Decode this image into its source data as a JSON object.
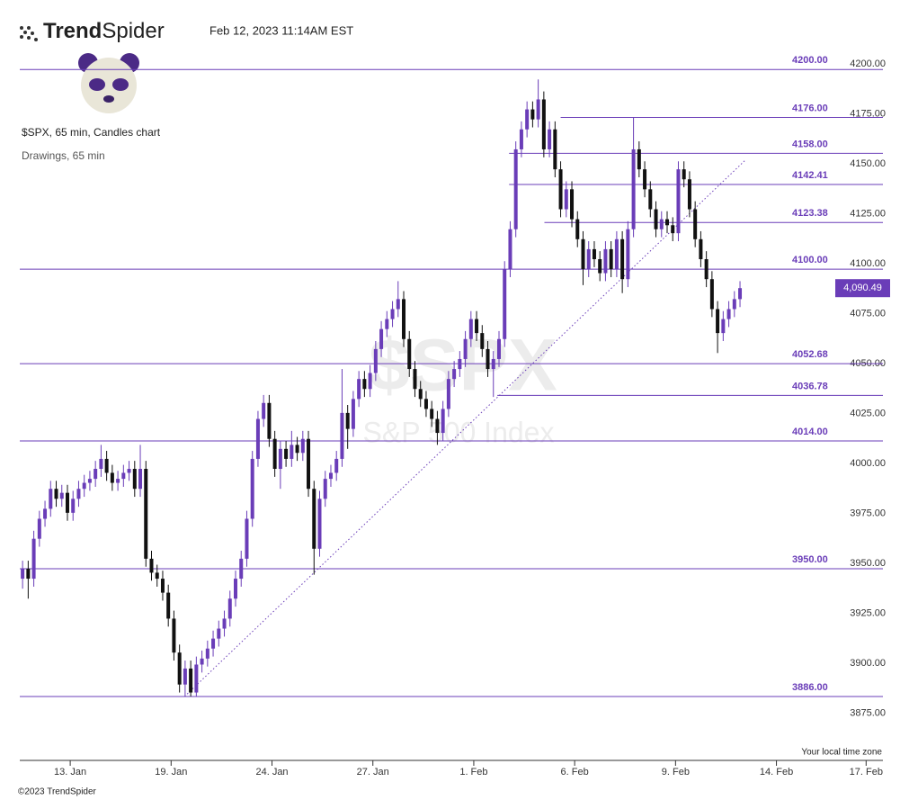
{
  "header": {
    "brand_bold": "Trend",
    "brand_light": "Spider",
    "timestamp": "Feb 12, 2023 11:14AM EST"
  },
  "footer": {
    "copyright": "©2023 TrendSpider",
    "timezone_note": "Your local time zone"
  },
  "chart_data": {
    "type": "candlestick",
    "title": "$SPX, 65 min, Candles chart",
    "subtitle": "Drawings, 65 min",
    "watermark": "$SPX",
    "watermark_subtitle": "S&P 500 Index",
    "up_color": "#6a3db8",
    "down_color": "#111111",
    "level_color": "#6a3db8",
    "grid": false,
    "xlim": [
      0,
      154
    ],
    "ylim": [
      3854,
      4210
    ],
    "xticks": [
      {
        "value": 9,
        "label": "13. Jan"
      },
      {
        "value": 27,
        "label": "19. Jan"
      },
      {
        "value": 45,
        "label": "24. Jan"
      },
      {
        "value": 63,
        "label": "27. Jan"
      },
      {
        "value": 81,
        "label": "1. Feb"
      },
      {
        "value": 99,
        "label": "6. Feb"
      },
      {
        "value": 117,
        "label": "9. Feb"
      },
      {
        "value": 135,
        "label": "14. Feb"
      },
      {
        "value": 151,
        "label": "17. Feb"
      }
    ],
    "yticks": [
      {
        "value": 3875,
        "label": "3875.00"
      },
      {
        "value": 3900,
        "label": "3900.00"
      },
      {
        "value": 3925,
        "label": "3925.00"
      },
      {
        "value": 3950,
        "label": "3950.00"
      },
      {
        "value": 3975,
        "label": "3975.00"
      },
      {
        "value": 4000,
        "label": "4000.00"
      },
      {
        "value": 4025,
        "label": "4025.00"
      },
      {
        "value": 4050,
        "label": "4050.00"
      },
      {
        "value": 4075,
        "label": "4075.00"
      },
      {
        "value": 4100,
        "label": "4100.00"
      },
      {
        "value": 4125,
        "label": "4125.00"
      },
      {
        "value": 4150,
        "label": "4150.00"
      },
      {
        "value": 4175,
        "label": "4175.00"
      },
      {
        "value": 4200,
        "label": "4200.00"
      }
    ],
    "open": [
      3945,
      3950,
      3945,
      3965,
      3975,
      3980,
      3990,
      3985,
      3988,
      3978,
      3985,
      3990,
      3993,
      3995,
      4000,
      4005,
      3998,
      3993,
      3995,
      3998,
      4000,
      3990,
      4000,
      3955,
      3948,
      3945,
      3938,
      3925,
      3908,
      3892,
      3900,
      3888,
      3902,
      3905,
      3910,
      3915,
      3920,
      3925,
      3935,
      3945,
      3955,
      3975,
      4005,
      4025,
      4033,
      4015,
      4000,
      4010,
      4005,
      4012,
      4008,
      4015,
      3990,
      3960,
      3985,
      3995,
      3998,
      4005,
      4028,
      4020,
      4035,
      4045,
      4040,
      4048,
      4060,
      4070,
      4075,
      4080,
      4085,
      4065,
      4050,
      4040,
      4035,
      4030,
      4025,
      4018,
      4030,
      4045,
      4050,
      4055,
      4065,
      4075,
      4068,
      4060,
      4050,
      4055,
      4065,
      4100,
      4120,
      4160,
      4170,
      4180,
      4175,
      4185,
      4160,
      4170,
      4150,
      4130,
      4140,
      4125,
      4115,
      4100,
      4110,
      4105,
      4098,
      4110,
      4100,
      4115,
      4095,
      4120,
      4160,
      4150,
      4140,
      4130,
      4120,
      4125,
      4122,
      4118,
      4150,
      4145,
      4130,
      4115,
      4105,
      4095,
      4080,
      4068,
      4075,
      4080,
      4085
    ],
    "high": [
      3954,
      3954,
      3969,
      3979,
      3984,
      3994,
      3994,
      3992,
      3992,
      3989,
      3994,
      3997,
      3999,
      4004,
      4012,
      4009,
      4002,
      3999,
      4002,
      4004,
      4004,
      4012,
      4004,
      3959,
      3952,
      3949,
      3942,
      3929,
      3912,
      3904,
      3904,
      3906,
      3909,
      3914,
      3919,
      3924,
      3929,
      3939,
      3949,
      3959,
      3979,
      4009,
      4029,
      4037,
      4037,
      4019,
      4014,
      4014,
      4019,
      4016,
      4019,
      4019,
      3994,
      3989,
      3999,
      4002,
      4009,
      4050,
      4032,
      4039,
      4049,
      4049,
      4052,
      4064,
      4074,
      4079,
      4084,
      4094,
      4089,
      4069,
      4054,
      4044,
      4039,
      4034,
      4029,
      4034,
      4049,
      4054,
      4059,
      4069,
      4079,
      4079,
      4072,
      4064,
      4059,
      4069,
      4104,
      4124,
      4164,
      4174,
      4184,
      4184,
      4195,
      4189,
      4174,
      4174,
      4154,
      4144,
      4144,
      4129,
      4119,
      4114,
      4114,
      4109,
      4114,
      4114,
      4119,
      4119,
      4124,
      4176,
      4164,
      4154,
      4144,
      4134,
      4129,
      4129,
      4126,
      4154,
      4154,
      4149,
      4134,
      4119,
      4109,
      4099,
      4084,
      4079,
      4084,
      4089,
      4094
    ],
    "low": [
      3940,
      3935,
      3941,
      3961,
      3971,
      3976,
      3981,
      3981,
      3974,
      3974,
      3981,
      3986,
      3989,
      3991,
      3996,
      3994,
      3989,
      3989,
      3991,
      3994,
      3986,
      3986,
      3951,
      3944,
      3941,
      3934,
      3921,
      3904,
      3888,
      3886,
      3886,
      3886,
      3898,
      3901,
      3906,
      3911,
      3916,
      3921,
      3931,
      3941,
      3951,
      3971,
      4001,
      4021,
      4011,
      3996,
      3990,
      4001,
      4001,
      4004,
      4004,
      3986,
      3947,
      3956,
      3981,
      3991,
      3994,
      4001,
      4010,
      4016,
      4031,
      4036,
      4036,
      4044,
      4056,
      4066,
      4071,
      4076,
      4061,
      4046,
      4036,
      4031,
      4026,
      4021,
      4012,
      4014,
      4026,
      4041,
      4046,
      4051,
      4061,
      4064,
      4056,
      4046,
      4036,
      4051,
      4061,
      4096,
      4116,
      4156,
      4166,
      4171,
      4171,
      4156,
      4156,
      4146,
      4126,
      4126,
      4121,
      4111,
      4092,
      4096,
      4101,
      4094,
      4094,
      4096,
      4096,
      4088,
      4091,
      4116,
      4146,
      4136,
      4126,
      4116,
      4116,
      4118,
      4114,
      4114,
      4141,
      4126,
      4111,
      4101,
      4091,
      4076,
      4058,
      4064,
      4071,
      4076,
      4081
    ],
    "close": [
      3950,
      3945,
      3965,
      3975,
      3980,
      3990,
      3985,
      3988,
      3978,
      3985,
      3990,
      3993,
      3995,
      4000,
      4005,
      3998,
      3993,
      3995,
      3998,
      4000,
      3990,
      4000,
      3955,
      3948,
      3945,
      3938,
      3925,
      3908,
      3892,
      3900,
      3888,
      3902,
      3905,
      3910,
      3915,
      3920,
      3925,
      3935,
      3945,
      3955,
      3975,
      4005,
      4025,
      4033,
      4015,
      4000,
      4010,
      4005,
      4012,
      4008,
      4015,
      3990,
      3960,
      3985,
      3995,
      3998,
      4005,
      4028,
      4020,
      4035,
      4045,
      4040,
      4048,
      4060,
      4070,
      4075,
      4080,
      4085,
      4065,
      4050,
      4040,
      4035,
      4030,
      4025,
      4018,
      4030,
      4045,
      4050,
      4055,
      4065,
      4075,
      4068,
      4060,
      4050,
      4055,
      4065,
      4100,
      4120,
      4160,
      4170,
      4180,
      4175,
      4185,
      4160,
      4170,
      4150,
      4130,
      4140,
      4125,
      4115,
      4100,
      4110,
      4105,
      4098,
      4110,
      4100,
      4115,
      4095,
      4120,
      4160,
      4150,
      4140,
      4130,
      4120,
      4125,
      4122,
      4118,
      4150,
      4145,
      4130,
      4115,
      4105,
      4095,
      4080,
      4068,
      4075,
      4080,
      4085,
      4090.49
    ],
    "last_price": {
      "value": 4090.49,
      "label": "4,090.49"
    },
    "levels": [
      {
        "value": 4200,
        "label": "4200.00"
      },
      {
        "value": 4176,
        "label": "4176.00",
        "start": 96.5
      },
      {
        "value": 4158,
        "label": "4158.00",
        "start": 87.3
      },
      {
        "value": 4142.41,
        "label": "4142.41",
        "start": 87.3
      },
      {
        "value": 4123.38,
        "label": "4123.38",
        "start": 93.6
      },
      {
        "value": 4100,
        "label": "4100.00"
      },
      {
        "value": 4052.68,
        "label": "4052.68"
      },
      {
        "value": 4036.78,
        "label": "4036.78",
        "start": 85.2
      },
      {
        "value": 4014,
        "label": "4014.00"
      },
      {
        "value": 3950,
        "label": "3950.00"
      },
      {
        "value": 3886,
        "label": "3886.00"
      }
    ],
    "trendline": {
      "x": [
        29.4,
        129.6
      ],
      "y": [
        3886,
        4155
      ]
    }
  }
}
